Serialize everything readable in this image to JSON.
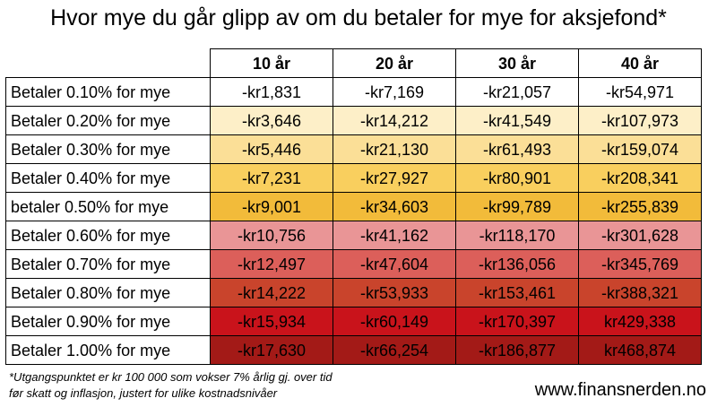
{
  "chart_data": {
    "type": "table",
    "title": "Hvor mye du går glipp av om du betaler for mye for aksjefond*",
    "columns": [
      "10 år",
      "20 år",
      "30 år",
      "40 år"
    ],
    "rows": [
      {
        "label": "Betaler 0.10% for mye",
        "color": "#ffffff",
        "values": [
          "-kr1,831",
          "-kr7,169",
          "-kr21,057",
          "-kr54,971"
        ]
      },
      {
        "label": "Betaler 0.20% for mye",
        "color": "#fdefc8",
        "values": [
          "-kr3,646",
          "-kr14,212",
          "-kr41,549",
          "-kr107,973"
        ]
      },
      {
        "label": "Betaler 0.30% for mye",
        "color": "#fbdf97",
        "values": [
          "-kr5,446",
          "-kr21,130",
          "-kr61,493",
          "-kr159,074"
        ]
      },
      {
        "label": "Betaler 0.40% for mye",
        "color": "#f9cf5e",
        "values": [
          "-kr7,231",
          "-kr27,927",
          "-kr80,901",
          "-kr208,341"
        ]
      },
      {
        "label": "betaler 0.50% for mye",
        "color": "#f2bb3a",
        "values": [
          "-kr9,001",
          "-kr34,603",
          "-kr99,789",
          "-kr255,839"
        ]
      },
      {
        "label": "Betaler 0.60% for mye",
        "color": "#e99596",
        "values": [
          "-kr10,756",
          "-kr41,162",
          "-kr118,170",
          "-kr301,628"
        ]
      },
      {
        "label": "Betaler 0.70% for mye",
        "color": "#dc5f5a",
        "values": [
          "-kr12,497",
          "-kr47,604",
          "-kr136,056",
          "-kr345,769"
        ]
      },
      {
        "label": "Betaler 0.80% for mye",
        "color": "#c9442c",
        "values": [
          "-kr14,222",
          "-kr53,933",
          "-kr153,461",
          "-kr388,321"
        ]
      },
      {
        "label": "Betaler 0.90% for mye",
        "color": "#c9131b",
        "values": [
          "-kr15,934",
          "-kr60,149",
          "-kr170,397",
          "kr429,338"
        ]
      },
      {
        "label": "Betaler 1.00% for mye",
        "color": "#a31a17",
        "values": [
          "-kr17,630",
          "-kr66,254",
          "-kr186,877",
          "kr468,874"
        ]
      }
    ]
  },
  "footnote": {
    "line1": "*Utgangspunktet er kr 100 000 som vokser 7% årlig gj. over tid",
    "line2": "før skatt og inflasjon, justert for ulike kostnadsnivåer"
  },
  "website": "www.finansnerden.no"
}
